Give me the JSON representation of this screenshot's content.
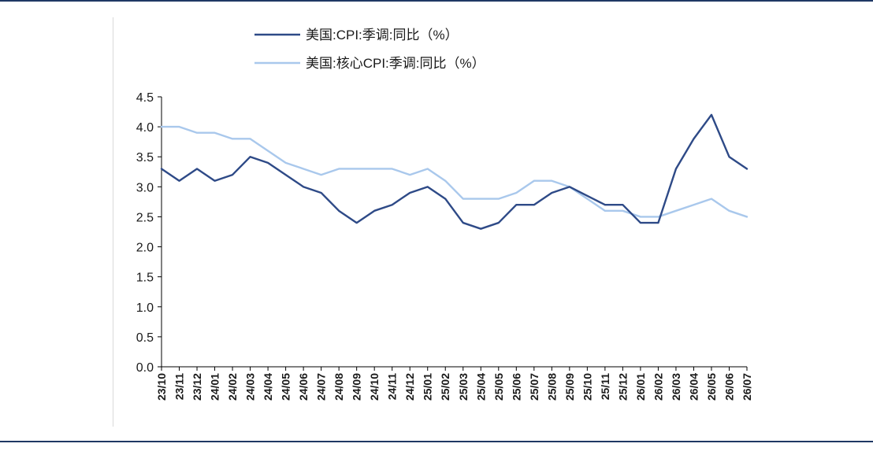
{
  "chart_data": {
    "type": "line",
    "title": "",
    "xlabel": "",
    "ylabel": "",
    "ylim": [
      0,
      4.5
    ],
    "yticks": [
      "0.0",
      "0.5",
      "1.0",
      "1.5",
      "2.0",
      "2.5",
      "3.0",
      "3.5",
      "4.0",
      "4.5"
    ],
    "grid": false,
    "legend": "top",
    "categories": [
      "23/10",
      "23/11",
      "23/12",
      "24/01",
      "24/02",
      "24/03",
      "24/04",
      "24/05",
      "24/06",
      "24/07",
      "24/08",
      "24/09",
      "24/10",
      "24/11",
      "24/12",
      "25/01",
      "25/02",
      "25/03",
      "25/04",
      "25/05",
      "25/06",
      "25/07",
      "25/08",
      "25/09",
      "25/10",
      "25/11",
      "25/12",
      "26/01",
      "26/02",
      "26/03",
      "26/04",
      "26/05",
      "26/06",
      "26/07"
    ],
    "series": [
      {
        "name": "美国:CPI:季调:同比（%）",
        "color": "#2e4a87",
        "values": [
          3.3,
          3.1,
          3.3,
          3.1,
          3.2,
          3.5,
          3.4,
          3.2,
          3.0,
          2.9,
          2.6,
          2.4,
          2.6,
          2.7,
          2.9,
          3.0,
          2.8,
          2.4,
          2.3,
          2.4,
          2.7,
          2.7,
          2.9,
          3.0,
          2.85,
          2.7,
          2.7,
          2.4,
          2.4,
          3.3,
          3.8,
          4.2,
          3.5,
          3.3
        ]
      },
      {
        "name": "美国:核心CPI:季调:同比（%）",
        "color": "#a9c8ec",
        "values": [
          4.0,
          4.0,
          3.9,
          3.9,
          3.8,
          3.8,
          3.6,
          3.4,
          3.3,
          3.2,
          3.3,
          3.3,
          3.3,
          3.3,
          3.2,
          3.3,
          3.1,
          2.8,
          2.8,
          2.8,
          2.9,
          3.1,
          3.1,
          3.0,
          2.8,
          2.6,
          2.6,
          2.5,
          2.5,
          2.6,
          2.7,
          2.8,
          2.6,
          2.5
        ]
      }
    ]
  }
}
